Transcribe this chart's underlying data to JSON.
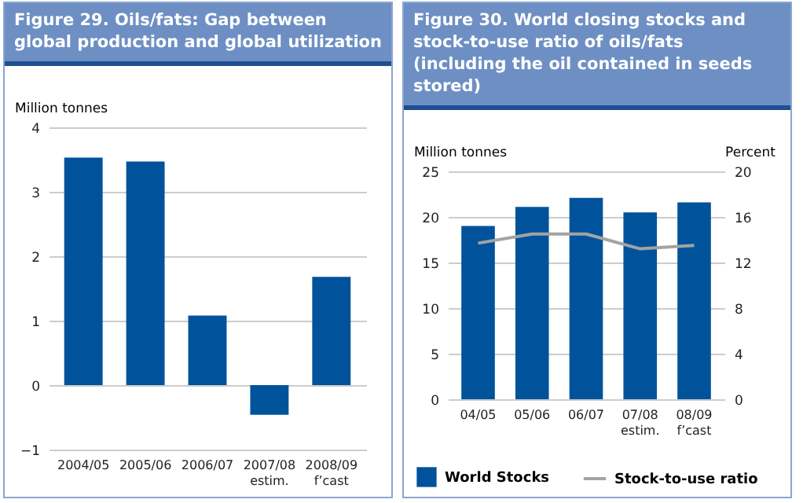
{
  "chart_data": [
    {
      "type": "bar",
      "title": "Figure 29.  Oils/fats: Gap between global production and global utilization",
      "ylabel": "Million tonnes",
      "categories": [
        "2004/05",
        "2005/06",
        "2006/07",
        "2007/08\nestim.",
        "2008/09\nf’cast"
      ],
      "values": [
        3.53,
        3.47,
        1.08,
        -0.46,
        1.68
      ],
      "color": "#00539b",
      "ylim": [
        -1,
        4
      ],
      "yticks": [
        -1,
        0,
        1,
        2,
        3,
        4
      ],
      "grid": "y"
    },
    {
      "type": "bar",
      "title": "Figure 30. World closing stocks and stock-to-use ratio of oils/fats (including the oil contained in seeds stored)",
      "ylabel": "Million tonnes",
      "y2label": "Percent",
      "categories": [
        "04/05",
        "05/06",
        "06/07",
        "07/08\nestim.",
        "08/09\nf’cast"
      ],
      "series": [
        {
          "name": "World Stocks",
          "color": "#00539b",
          "values": [
            19.0,
            21.1,
            22.1,
            20.5,
            21.6
          ]
        },
        {
          "name": "Stock-to-use ratio",
          "type": "line",
          "axis": "y2",
          "color": "#a3a3a3",
          "values": [
            13.7,
            14.5,
            14.5,
            13.2,
            13.5
          ]
        }
      ],
      "ylim": [
        0,
        25
      ],
      "yticks": [
        0,
        5,
        10,
        15,
        20,
        25
      ],
      "y2lim": [
        0,
        20
      ],
      "y2ticks": [
        0,
        4,
        8,
        12,
        16,
        20
      ],
      "grid": "y",
      "legend": "bottom"
    }
  ]
}
